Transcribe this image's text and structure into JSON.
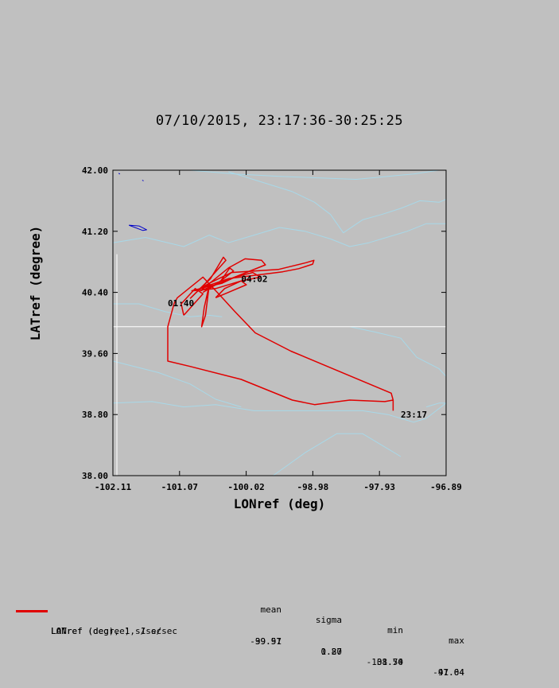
{
  "title": "07/10/2015, 23:17:36-30:25:25",
  "chart_data": {
    "type": "line",
    "xlabel": "LONref (deg)",
    "ylabel": "LATref (degree)",
    "xlim": [
      -102.11,
      -96.89
    ],
    "ylim": [
      38.0,
      42.0
    ],
    "xticks": [
      "-102.11",
      "-101.07",
      "-100.02",
      "-98.98",
      "-97.93",
      "-96.89"
    ],
    "yticks": [
      "42.00",
      "41.20",
      "40.40",
      "39.60",
      "38.80",
      "38.00"
    ],
    "annotations": [
      {
        "text": "23:17",
        "x": -97.6,
        "y": 38.8
      },
      {
        "text": "04:02",
        "x": -100.1,
        "y": 40.58
      },
      {
        "text": "01:40",
        "x": -101.25,
        "y": 40.26
      }
    ],
    "series": [
      {
        "color": "#e00000",
        "x": [
          -97.72,
          -97.72,
          -97.85,
          -98.4,
          -98.95,
          -99.3,
          -100.1,
          -100.9,
          -101.25,
          -101.25,
          -101.15,
          -101.1,
          -100.7,
          -100.42,
          -100.2,
          -99.88,
          -99.32,
          -97.75,
          -97.72
        ],
        "y": [
          38.85,
          38.99,
          38.97,
          38.99,
          38.93,
          38.99,
          39.26,
          39.43,
          39.5,
          39.95,
          40.26,
          40.33,
          40.6,
          40.35,
          40.15,
          39.87,
          39.63,
          39.08,
          38.99
        ]
      }
    ],
    "loops": [
      {
        "x": [
          -100.9,
          -100.58,
          -100.38,
          -100.34,
          -100.66,
          -100.9
        ],
        "y": [
          40.32,
          40.58,
          40.86,
          40.82,
          40.52,
          40.32
        ]
      },
      {
        "x": [
          -100.74,
          -100.3,
          -100.04,
          -99.78,
          -99.72,
          -100.5,
          -100.74
        ],
        "y": [
          40.42,
          40.72,
          40.84,
          40.82,
          40.76,
          40.5,
          40.42
        ]
      },
      {
        "x": [
          -100.75,
          -100.6,
          -100.25,
          -99.52,
          -99.08,
          -98.96,
          -98.98,
          -99.2,
          -99.45,
          -100.3,
          -100.75
        ],
        "y": [
          40.45,
          40.52,
          40.66,
          40.7,
          40.79,
          40.82,
          40.77,
          40.71,
          40.67,
          40.58,
          40.45
        ]
      },
      {
        "x": [
          -100.6,
          -100.66,
          -100.72,
          -100.68,
          -100.6
        ],
        "y": [
          40.5,
          40.1,
          39.95,
          40.2,
          40.5
        ]
      },
      {
        "x": [
          -101.0,
          -101.04,
          -100.82,
          -100.7,
          -101.0
        ],
        "y": [
          40.1,
          40.25,
          40.45,
          40.38,
          40.1
        ]
      },
      {
        "x": [
          -100.88,
          -100.6,
          -100.4,
          -100.2,
          -99.92,
          -99.8,
          -100.1,
          -100.5,
          -100.88
        ],
        "y": [
          40.42,
          40.48,
          40.52,
          40.6,
          40.66,
          40.6,
          40.55,
          40.45,
          40.42
        ]
      },
      {
        "x": [
          -100.5,
          -100.36,
          -100.1,
          -100.02,
          -100.3,
          -100.5
        ],
        "y": [
          40.33,
          40.45,
          40.55,
          40.5,
          40.4,
          40.33
        ]
      },
      {
        "x": [
          -100.7,
          -100.42,
          -100.28,
          -100.22,
          -100.5,
          -100.7
        ],
        "y": [
          40.4,
          40.55,
          40.72,
          40.68,
          40.5,
          40.4
        ]
      }
    ],
    "reference_lines": [
      {
        "color": "#ffffff",
        "type": "horizontal",
        "y": 39.95,
        "x_from": -102.11,
        "x_to": -96.89
      },
      {
        "color": "#ffffff",
        "type": "vertical",
        "x": -102.11,
        "y_from": 38.0,
        "y_to": 40.9
      }
    ],
    "background_lines": [
      {
        "color": "#a8d8e8",
        "x": [
          -102.11,
          -101.6,
          -101.0,
          -100.6,
          -100.3,
          -99.9,
          -99.5,
          -99.1,
          -98.7,
          -98.4,
          -98.1,
          -97.5,
          -97.2,
          -96.89
        ],
        "y": [
          41.05,
          41.12,
          41.0,
          41.15,
          41.05,
          41.15,
          41.25,
          41.2,
          41.1,
          41.0,
          41.05,
          41.2,
          41.3,
          41.3
        ]
      },
      {
        "color": "#a8d8e8",
        "x": [
          -100.3,
          -99.8,
          -99.3,
          -98.95,
          -98.7,
          -98.5,
          -98.2,
          -97.9,
          -97.6,
          -97.3,
          -97.0,
          -96.89
        ],
        "y": [
          41.98,
          41.85,
          41.72,
          41.58,
          41.42,
          41.18,
          41.35,
          41.42,
          41.5,
          41.6,
          41.58,
          41.62
        ]
      },
      {
        "color": "#a8d8e8",
        "x": [
          -100.9,
          -100.2,
          -99.5,
          -98.9,
          -98.3,
          -97.8,
          -97.4,
          -97.0,
          -96.89
        ],
        "y": [
          42.0,
          41.95,
          41.92,
          41.9,
          41.88,
          41.92,
          41.95,
          42.0,
          42.0
        ]
      },
      {
        "color": "#a8d8e8",
        "x": [
          -102.11,
          -101.5,
          -101.0,
          -100.5,
          -99.9,
          -99.0,
          -98.2,
          -97.8,
          -97.6,
          -97.4,
          -97.2,
          -96.89
        ],
        "y": [
          38.95,
          38.97,
          38.9,
          38.93,
          38.85,
          38.85,
          38.85,
          38.8,
          38.75,
          38.7,
          38.75,
          38.95
        ]
      },
      {
        "color": "#a8d8e8",
        "x": [
          -102.11,
          -101.7,
          -101.3,
          -100.9,
          -100.6,
          -100.4
        ],
        "y": [
          40.25,
          40.25,
          40.15,
          40.08,
          40.1,
          40.08
        ]
      },
      {
        "color": "#a8d8e8",
        "x": [
          -98.4,
          -98.0,
          -97.6,
          -97.35,
          -97.0,
          -96.89
        ],
        "y": [
          39.95,
          39.88,
          39.8,
          39.55,
          39.4,
          39.3
        ]
      },
      {
        "color": "#a8d8e8",
        "x": [
          -102.11,
          -101.4,
          -100.9,
          -100.5,
          -100.1
        ],
        "y": [
          39.5,
          39.35,
          39.2,
          39.0,
          38.9
        ]
      },
      {
        "color": "#a8d8e8",
        "x": [
          -99.6,
          -99.1,
          -98.6,
          -98.2,
          -97.9,
          -97.6
        ],
        "y": [
          38.0,
          38.3,
          38.55,
          38.55,
          38.4,
          38.25
        ]
      },
      {
        "color": "#a8d8e8",
        "x": [
          -97.2,
          -97.0,
          -96.89
        ],
        "y": [
          38.9,
          38.95,
          38.95
        ]
      },
      {
        "color": "#0000c8",
        "x": [
          -101.86,
          -101.7,
          -101.58,
          -101.64,
          -101.86
        ],
        "y": [
          41.28,
          41.27,
          41.22,
          41.21,
          41.28
        ]
      },
      {
        "color": "#0000c8",
        "x": [
          -102.02,
          -102.0
        ],
        "y": [
          41.96,
          41.95
        ]
      },
      {
        "color": "#0000c8",
        "x": [
          -101.65,
          -101.63
        ],
        "y": [
          41.87,
          41.86
        ]
      }
    ]
  },
  "legend": {
    "headers": {
      "mean": "mean",
      "sigma": "sigma",
      "min": "min",
      "max": "max"
    },
    "rows": [
      {
        "label": "LATref (degree), 1 s/sec",
        "mean": "39.91",
        "sigma": "0.80",
        "min": "38.74",
        "max": "41.04",
        "color": "#e00000"
      },
      {
        "label": "LONref (deg), 1 s/sec",
        "mean": "-99.57",
        "sigma": "1.27",
        "min": "-101.50",
        "max": "-97.64"
      }
    ]
  }
}
